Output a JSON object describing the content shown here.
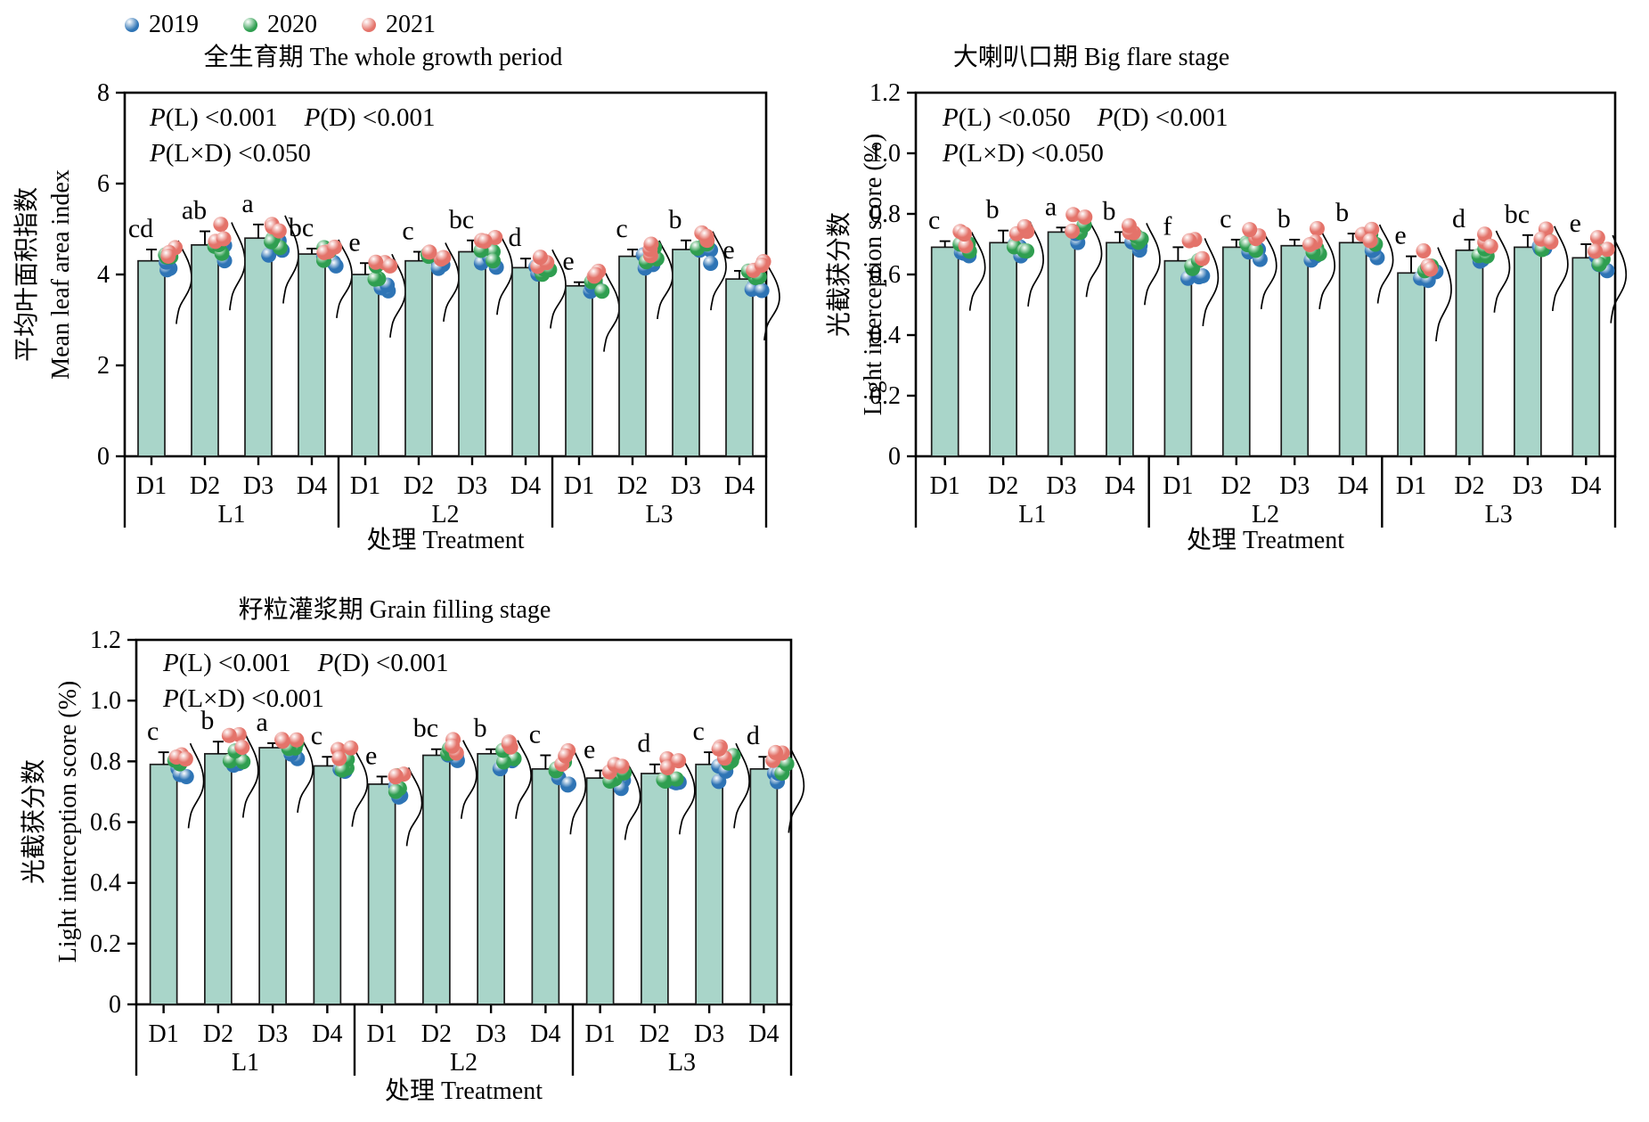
{
  "legend": {
    "items": [
      {
        "label": "2019",
        "color": "#2e74b5"
      },
      {
        "label": "2020",
        "color": "#2f9e50"
      },
      {
        "label": "2021",
        "color": "#e4736a"
      }
    ]
  },
  "style": {
    "bar_fill": "#a9d5c9",
    "bar_stroke": "#1c1c1c",
    "axis_color": "#000000",
    "dot_radius": 8.5
  },
  "chart_data": [
    {
      "type": "bar",
      "title": "全生育期 The whole growth period",
      "xlabel": "处理 Treatment",
      "ylabel_zh": "平均叶面积指数",
      "ylabel_en": "Mean leaf area index",
      "ylim": [
        0,
        8
      ],
      "yticks": [
        "0",
        "2",
        "4",
        "6",
        "8"
      ],
      "groups": [
        "L1",
        "L2",
        "L3"
      ],
      "categories": [
        "D1",
        "D2",
        "D3",
        "D4"
      ],
      "p_values": {
        "p1_sym": "P",
        "p1_txt": "(L) <0.001",
        "p2_sym": "P",
        "p2_txt": "(D) <0.001",
        "p3_sym": "P",
        "p3_txt": "(L×D) <0.050"
      },
      "series_note": "bars = mean of 2019-2021; jittered dots = yearly replicates; curve = distribution outline",
      "bars": [
        {
          "group": "L1",
          "treatment": "D1",
          "value": 4.3,
          "error": 0.25,
          "letter": "cd"
        },
        {
          "group": "L1",
          "treatment": "D2",
          "value": 4.65,
          "error": 0.3,
          "letter": "ab"
        },
        {
          "group": "L1",
          "treatment": "D3",
          "value": 4.8,
          "error": 0.3,
          "letter": "a"
        },
        {
          "group": "L1",
          "treatment": "D4",
          "value": 4.45,
          "error": 0.12,
          "letter": "bc"
        },
        {
          "group": "L2",
          "treatment": "D1",
          "value": 4.0,
          "error": 0.25,
          "letter": "e"
        },
        {
          "group": "L2",
          "treatment": "D2",
          "value": 4.3,
          "error": 0.2,
          "letter": "c"
        },
        {
          "group": "L2",
          "treatment": "D3",
          "value": 4.5,
          "error": 0.25,
          "letter": "bc"
        },
        {
          "group": "L2",
          "treatment": "D4",
          "value": 4.15,
          "error": 0.2,
          "letter": "d"
        },
        {
          "group": "L3",
          "treatment": "D1",
          "value": 3.75,
          "error": 0.08,
          "letter": "e"
        },
        {
          "group": "L3",
          "treatment": "D2",
          "value": 4.4,
          "error": 0.15,
          "letter": "c"
        },
        {
          "group": "L3",
          "treatment": "D3",
          "value": 4.55,
          "error": 0.2,
          "letter": "b"
        },
        {
          "group": "L3",
          "treatment": "D4",
          "value": 3.9,
          "error": 0.18,
          "letter": "e"
        }
      ]
    },
    {
      "type": "bar",
      "title": "大喇叭口期 Big flare stage",
      "xlabel": "处理 Treatment",
      "ylabel_zh": "光截获分数",
      "ylabel_en": "Light interception score (%)",
      "ylim": [
        0,
        1.2
      ],
      "yticks": [
        "0",
        "0.2",
        "0.4",
        "0.6",
        "0.8",
        "1.0",
        "1.2"
      ],
      "groups": [
        "L1",
        "L2",
        "L3"
      ],
      "categories": [
        "D1",
        "D2",
        "D3",
        "D4"
      ],
      "p_values": {
        "p1_sym": "P",
        "p1_txt": "(L) <0.050",
        "p2_sym": "P",
        "p2_txt": "(D) <0.001",
        "p3_sym": "P",
        "p3_txt": "(L×D) <0.050"
      },
      "series_note": "bars = mean of 2019-2021; jittered dots = yearly replicates; curve = distribution outline",
      "bars": [
        {
          "group": "L1",
          "treatment": "D1",
          "value": 0.69,
          "error": 0.02,
          "letter": "c"
        },
        {
          "group": "L1",
          "treatment": "D2",
          "value": 0.705,
          "error": 0.04,
          "letter": "b"
        },
        {
          "group": "L1",
          "treatment": "D3",
          "value": 0.74,
          "error": 0.015,
          "letter": "a"
        },
        {
          "group": "L1",
          "treatment": "D4",
          "value": 0.705,
          "error": 0.035,
          "letter": "b"
        },
        {
          "group": "L2",
          "treatment": "D1",
          "value": 0.645,
          "error": 0.045,
          "letter": "f"
        },
        {
          "group": "L2",
          "treatment": "D2",
          "value": 0.69,
          "error": 0.025,
          "letter": "c"
        },
        {
          "group": "L2",
          "treatment": "D3",
          "value": 0.695,
          "error": 0.02,
          "letter": "b"
        },
        {
          "group": "L2",
          "treatment": "D4",
          "value": 0.705,
          "error": 0.03,
          "letter": "b"
        },
        {
          "group": "L3",
          "treatment": "D1",
          "value": 0.605,
          "error": 0.055,
          "letter": "e"
        },
        {
          "group": "L3",
          "treatment": "D2",
          "value": 0.68,
          "error": 0.035,
          "letter": "d"
        },
        {
          "group": "L3",
          "treatment": "D3",
          "value": 0.69,
          "error": 0.04,
          "letter": "bc"
        },
        {
          "group": "L3",
          "treatment": "D4",
          "value": 0.655,
          "error": 0.045,
          "letter": "e"
        }
      ]
    },
    {
      "type": "bar",
      "title": "籽粒灌浆期 Grain filling stage",
      "xlabel": "处理 Treatment",
      "ylabel_zh": "光截获分数",
      "ylabel_en": "Light interception score (%)",
      "ylim": [
        0,
        1.2
      ],
      "yticks": [
        "0",
        "0.2",
        "0.4",
        "0.6",
        "0.8",
        "1.0",
        "1.2"
      ],
      "groups": [
        "L1",
        "L2",
        "L3"
      ],
      "categories": [
        "D1",
        "D2",
        "D3",
        "D4"
      ],
      "p_values": {
        "p1_sym": "P",
        "p1_txt": "(L) <0.001",
        "p2_sym": "P",
        "p2_txt": "(D) <0.001",
        "p3_sym": "P",
        "p3_txt": "(L×D) <0.001"
      },
      "series_note": "bars = mean of 2019-2021; jittered dots = yearly replicates; curve = distribution outline",
      "bars": [
        {
          "group": "L1",
          "treatment": "D1",
          "value": 0.79,
          "error": 0.04,
          "letter": "c"
        },
        {
          "group": "L1",
          "treatment": "D2",
          "value": 0.825,
          "error": 0.04,
          "letter": "b"
        },
        {
          "group": "L1",
          "treatment": "D3",
          "value": 0.845,
          "error": 0.015,
          "letter": "a"
        },
        {
          "group": "L1",
          "treatment": "D4",
          "value": 0.785,
          "error": 0.03,
          "letter": "c"
        },
        {
          "group": "L2",
          "treatment": "D1",
          "value": 0.725,
          "error": 0.025,
          "letter": "e"
        },
        {
          "group": "L2",
          "treatment": "D2",
          "value": 0.82,
          "error": 0.02,
          "letter": "bc"
        },
        {
          "group": "L2",
          "treatment": "D3",
          "value": 0.825,
          "error": 0.015,
          "letter": "b"
        },
        {
          "group": "L2",
          "treatment": "D4",
          "value": 0.775,
          "error": 0.045,
          "letter": "c"
        },
        {
          "group": "L3",
          "treatment": "D1",
          "value": 0.745,
          "error": 0.025,
          "letter": "e"
        },
        {
          "group": "L3",
          "treatment": "D2",
          "value": 0.76,
          "error": 0.03,
          "letter": "d"
        },
        {
          "group": "L3",
          "treatment": "D3",
          "value": 0.79,
          "error": 0.04,
          "letter": "c"
        },
        {
          "group": "L3",
          "treatment": "D4",
          "value": 0.775,
          "error": 0.04,
          "letter": "d"
        }
      ]
    }
  ]
}
